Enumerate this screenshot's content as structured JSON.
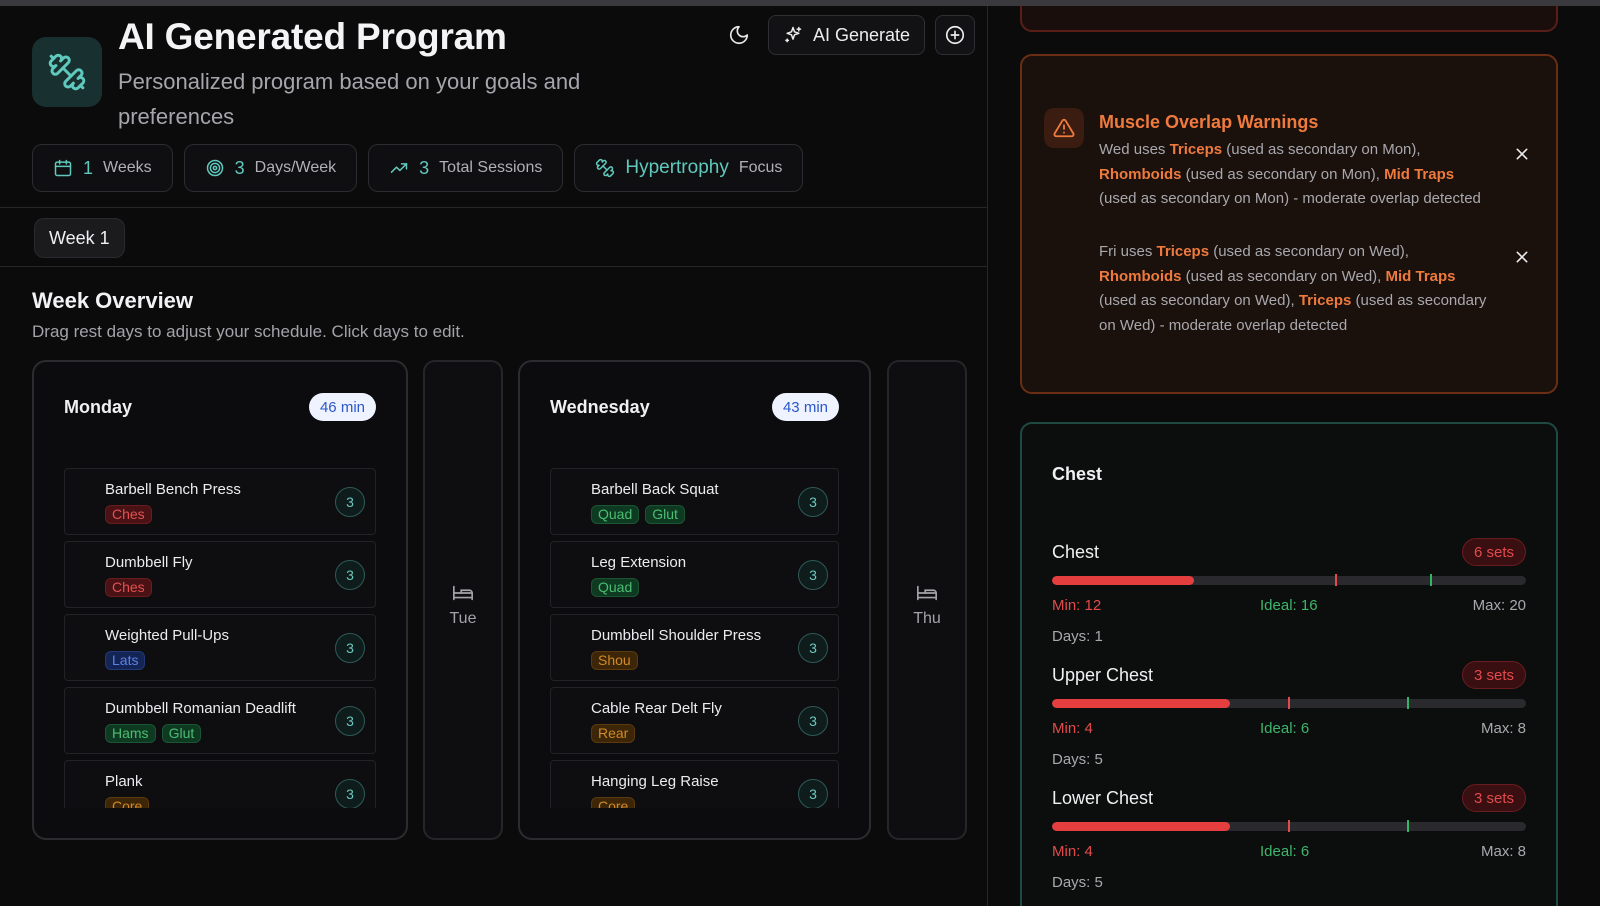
{
  "header": {
    "title": "AI Generated Program",
    "subtitle": "Personalized program based on your goals and preferences",
    "ai_generate_label": "AI Generate"
  },
  "stats": {
    "weeks_value": "1",
    "weeks_label": "Weeks",
    "days_value": "3",
    "days_label": "Days/Week",
    "sessions_value": "3",
    "sessions_label": "Total Sessions",
    "focus_value": "Hypertrophy",
    "focus_label": "Focus"
  },
  "tabs": [
    {
      "label": "Week 1"
    }
  ],
  "overview": {
    "title": "Week Overview",
    "subtitle": "Drag rest days to adjust your schedule. Click days to edit."
  },
  "days": {
    "monday": {
      "name": "Monday",
      "duration": "46 min",
      "exercises": [
        {
          "name": "Barbell Bench Press",
          "tags": [
            "Ches"
          ],
          "sets": "3"
        },
        {
          "name": "Dumbbell Fly",
          "tags": [
            "Ches"
          ],
          "sets": "3"
        },
        {
          "name": "Weighted Pull-Ups",
          "tags": [
            "Lats"
          ],
          "sets": "3"
        },
        {
          "name": "Dumbbell Romanian Deadlift",
          "tags": [
            "Hams",
            "Glut"
          ],
          "sets": "3"
        },
        {
          "name": "Plank",
          "tags": [
            "Core"
          ],
          "sets": "3"
        }
      ]
    },
    "tuesday": {
      "name": "Tue"
    },
    "wednesday": {
      "name": "Wednesday",
      "duration": "43 min",
      "exercises": [
        {
          "name": "Barbell Back Squat",
          "tags": [
            "Quad",
            "Glut"
          ],
          "sets": "3"
        },
        {
          "name": "Leg Extension",
          "tags": [
            "Quad"
          ],
          "sets": "3"
        },
        {
          "name": "Dumbbell Shoulder Press",
          "tags": [
            "Shou"
          ],
          "sets": "3"
        },
        {
          "name": "Cable Rear Delt Fly",
          "tags": [
            "Rear"
          ],
          "sets": "3"
        },
        {
          "name": "Hanging Leg Raise",
          "tags": [
            "Core"
          ],
          "sets": "3"
        }
      ]
    },
    "thursday": {
      "name": "Thu"
    }
  },
  "warnings": {
    "title": "Muscle Overlap Warnings",
    "w1": {
      "p1": "Wed uses ",
      "m1": "Triceps",
      "p2": " (used as secondary on Mon), ",
      "m2": "Rhomboids",
      "p3": " (used as secondary on Mon), ",
      "m3": "Mid Traps",
      "p4": " (used as secondary on Mon) - moderate overlap detected"
    },
    "w2": {
      "p1": "Fri uses ",
      "m1": "Triceps",
      "p2": " (used as secondary on Wed), ",
      "m2": "Rhomboids",
      "p3": " (used as secondary on Wed), ",
      "m3": "Mid Traps",
      "p4": " (used as secondary on Wed), ",
      "m4": "Triceps",
      "p5": " (used as secondary on Wed) - moderate overlap detected"
    }
  },
  "volume": {
    "title": "Chest",
    "groups": [
      {
        "name": "Chest",
        "sets": "6 sets",
        "min": "Min: 12",
        "ideal": "Ideal: 16",
        "max": "Max: 20",
        "days": "Days: 1",
        "fill_fraction": 0.3,
        "min_fraction": 0.6,
        "ideal_fraction": 0.8
      },
      {
        "name": "Upper Chest",
        "sets": "3 sets",
        "min": "Min: 4",
        "ideal": "Ideal: 6",
        "max": "Max: 8",
        "days": "Days: 5",
        "fill_fraction": 0.375,
        "min_fraction": 0.5,
        "ideal_fraction": 0.75
      },
      {
        "name": "Lower Chest",
        "sets": "3 sets",
        "min": "Min: 4",
        "ideal": "Ideal: 6",
        "max": "Max: 8",
        "days": "Days: 5",
        "fill_fraction": 0.375,
        "min_fraction": 0.5,
        "ideal_fraction": 0.75
      }
    ]
  },
  "colors": {
    "accent_teal": "#5fc9bd",
    "warning_orange": "#ef7a3d",
    "danger_red": "#e53e3e",
    "ideal_green": "#33b566"
  }
}
